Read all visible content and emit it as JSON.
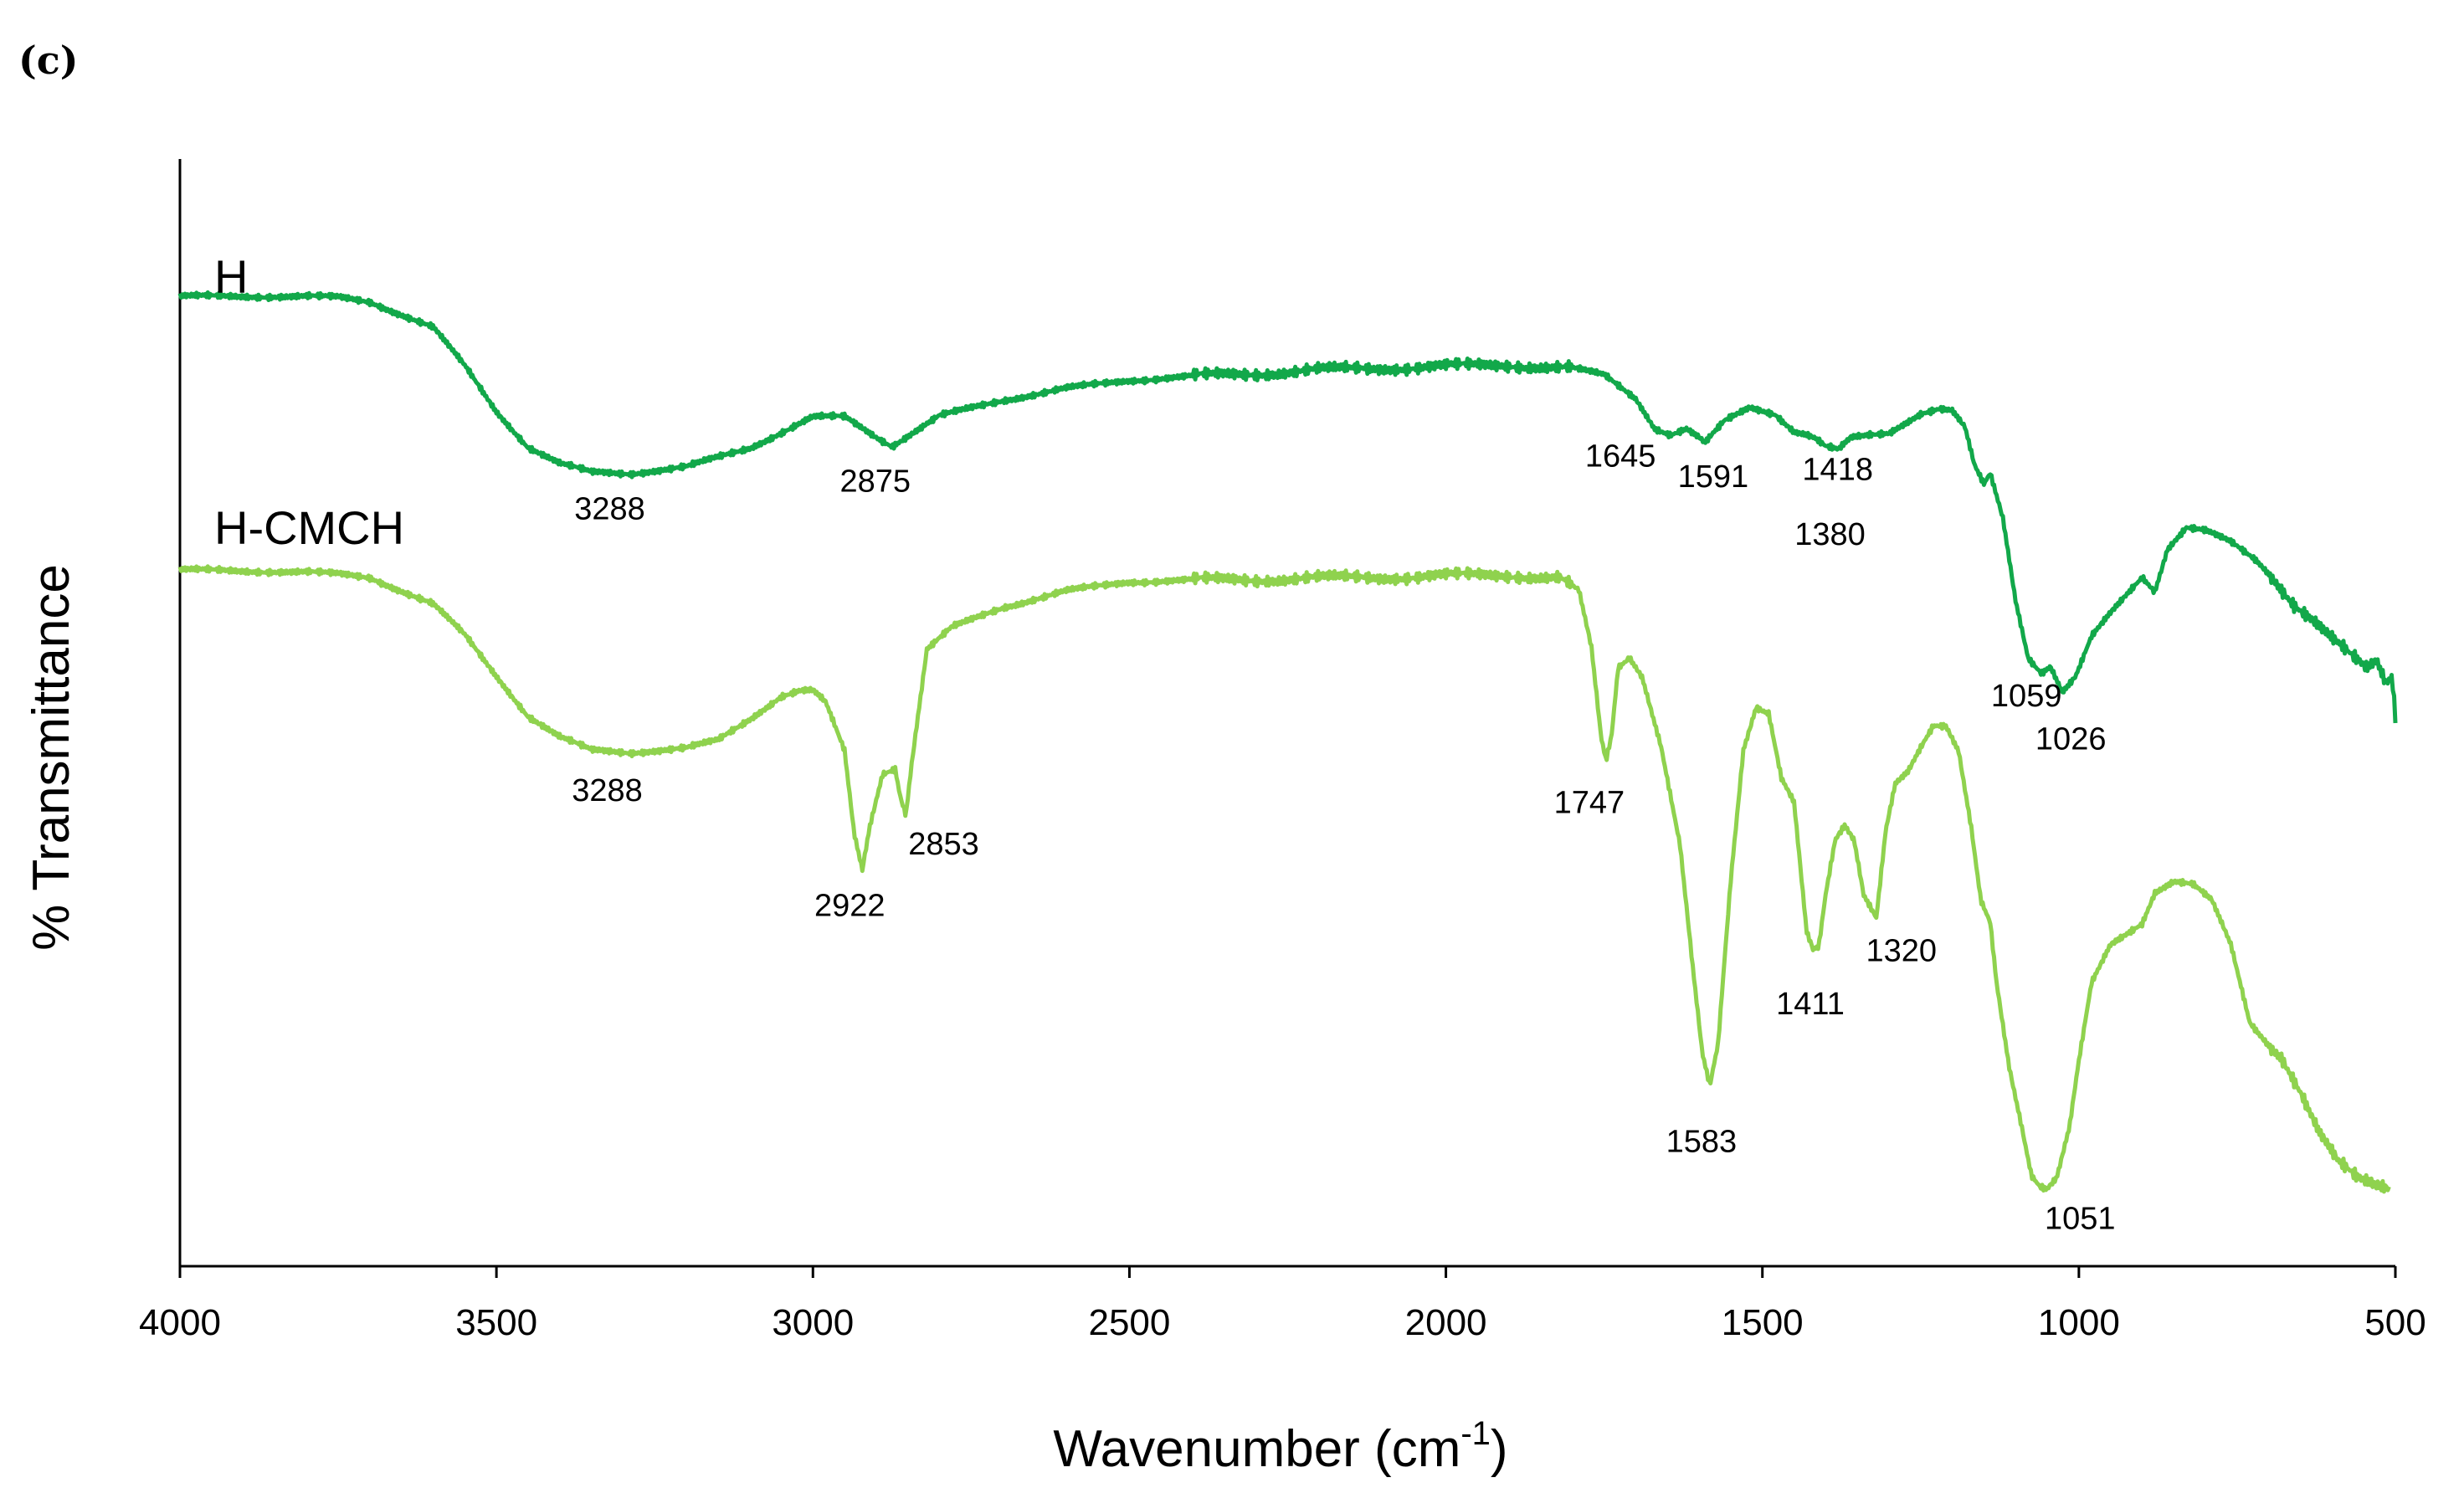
{
  "panel_label": "(c)",
  "colors": {
    "H": "#12a84a",
    "H-CMCH": "#8fd24e",
    "axis": "#000000"
  },
  "chart_data": {
    "type": "line",
    "title": "",
    "xlabel": "Wavenumber (cm",
    "xlabel_sup": "-1",
    "xlabel_close": ")",
    "ylabel": "% Transmittance",
    "xlim": [
      4000,
      500
    ],
    "x_reversed": true,
    "ylim": [
      0,
      1
    ],
    "y_ticks_shown": false,
    "grid": false,
    "legend": "inline labels beside curves",
    "x_ticks": [
      4000,
      3500,
      3000,
      2500,
      2000,
      1500,
      1000,
      500
    ],
    "x_tick_labels": [
      "4000",
      "3500",
      "3000",
      "2500",
      "2000",
      "1500",
      "1000",
      "500"
    ],
    "series": [
      {
        "name": "H",
        "points": [
          [
            4000,
            0.876
          ],
          [
            3800,
            0.876
          ],
          [
            3750,
            0.875
          ],
          [
            3700,
            0.871
          ],
          [
            3600,
            0.848
          ],
          [
            3550,
            0.813
          ],
          [
            3500,
            0.772
          ],
          [
            3450,
            0.74
          ],
          [
            3400,
            0.725
          ],
          [
            3350,
            0.717
          ],
          [
            3288,
            0.716
          ],
          [
            3200,
            0.722
          ],
          [
            3100,
            0.739
          ],
          [
            3000,
            0.767
          ],
          [
            2950,
            0.767
          ],
          [
            2900,
            0.749
          ],
          [
            2875,
            0.741
          ],
          [
            2850,
            0.75
          ],
          [
            2800,
            0.768
          ],
          [
            2700,
            0.782
          ],
          [
            2600,
            0.793
          ],
          [
            2500,
            0.8
          ],
          [
            2400,
            0.804
          ],
          [
            2300,
            0.806
          ],
          [
            2200,
            0.81
          ],
          [
            2100,
            0.811
          ],
          [
            2000,
            0.813
          ],
          [
            1900,
            0.814
          ],
          [
            1800,
            0.811
          ],
          [
            1750,
            0.805
          ],
          [
            1700,
            0.784
          ],
          [
            1670,
            0.757
          ],
          [
            1645,
            0.751
          ],
          [
            1620,
            0.756
          ],
          [
            1600,
            0.748
          ],
          [
            1591,
            0.743
          ],
          [
            1560,
            0.763
          ],
          [
            1520,
            0.776
          ],
          [
            1480,
            0.77
          ],
          [
            1450,
            0.754
          ],
          [
            1430,
            0.751
          ],
          [
            1418,
            0.748
          ],
          [
            1400,
            0.74
          ],
          [
            1380,
            0.737
          ],
          [
            1360,
            0.748
          ],
          [
            1330,
            0.751
          ],
          [
            1300,
            0.753
          ],
          [
            1280,
            0.76
          ],
          [
            1250,
            0.77
          ],
          [
            1220,
            0.774
          ],
          [
            1200,
            0.772
          ],
          [
            1180,
            0.757
          ],
          [
            1165,
            0.723
          ],
          [
            1150,
            0.706
          ],
          [
            1140,
            0.716
          ],
          [
            1120,
            0.676
          ],
          [
            1100,
            0.602
          ],
          [
            1080,
            0.55
          ],
          [
            1065,
            0.54
          ],
          [
            1059,
            0.536
          ],
          [
            1045,
            0.542
          ],
          [
            1026,
            0.518
          ],
          [
            1005,
            0.532
          ],
          [
            980,
            0.568
          ],
          [
            950,
            0.59
          ],
          [
            920,
            0.61
          ],
          [
            900,
            0.623
          ],
          [
            880,
            0.61
          ],
          [
            860,
            0.648
          ],
          [
            830,
            0.667
          ],
          [
            800,
            0.664
          ],
          [
            760,
            0.654
          ],
          [
            720,
            0.638
          ],
          [
            690,
            0.62
          ],
          [
            660,
            0.598
          ],
          [
            630,
            0.583
          ],
          [
            600,
            0.566
          ],
          [
            570,
            0.551
          ],
          [
            545,
            0.54
          ],
          [
            530,
            0.548
          ],
          [
            515,
            0.528
          ],
          [
            505,
            0.534
          ],
          [
            500,
            0.497
          ]
        ],
        "peaks": [
          {
            "x": 3288,
            "label": "3288"
          },
          {
            "x": 2875,
            "label": "2875"
          },
          {
            "x": 1645,
            "label": "1645"
          },
          {
            "x": 1591,
            "label": "1591"
          },
          {
            "x": 1418,
            "label": "1418"
          },
          {
            "x": 1380,
            "label": "1380"
          },
          {
            "x": 1059,
            "label": "1059"
          },
          {
            "x": 1026,
            "label": "1026"
          }
        ]
      },
      {
        "name": "H-CMCH",
        "points": [
          [
            4000,
            0.629
          ],
          [
            3800,
            0.627
          ],
          [
            3750,
            0.625
          ],
          [
            3700,
            0.622
          ],
          [
            3600,
            0.598
          ],
          [
            3550,
            0.57
          ],
          [
            3500,
            0.533
          ],
          [
            3450,
            0.497
          ],
          [
            3400,
            0.478
          ],
          [
            3350,
            0.466
          ],
          [
            3288,
            0.464
          ],
          [
            3200,
            0.468
          ],
          [
            3150,
            0.475
          ],
          [
            3100,
            0.494
          ],
          [
            3050,
            0.515
          ],
          [
            3020,
            0.52
          ],
          [
            3000,
            0.52
          ],
          [
            2980,
            0.509
          ],
          [
            2950,
            0.465
          ],
          [
            2935,
            0.391
          ],
          [
            2922,
            0.358
          ],
          [
            2910,
            0.398
          ],
          [
            2890,
            0.445
          ],
          [
            2870,
            0.45
          ],
          [
            2862,
            0.425
          ],
          [
            2853,
            0.408
          ],
          [
            2845,
            0.45
          ],
          [
            2820,
            0.557
          ],
          [
            2780,
            0.577
          ],
          [
            2700,
            0.595
          ],
          [
            2600,
            0.61
          ],
          [
            2500,
            0.618
          ],
          [
            2400,
            0.62
          ],
          [
            2300,
            0.62
          ],
          [
            2200,
            0.622
          ],
          [
            2100,
            0.622
          ],
          [
            2000,
            0.624
          ],
          [
            1900,
            0.624
          ],
          [
            1820,
            0.622
          ],
          [
            1790,
            0.61
          ],
          [
            1770,
            0.558
          ],
          [
            1755,
            0.478
          ],
          [
            1747,
            0.456
          ],
          [
            1738,
            0.48
          ],
          [
            1728,
            0.54
          ],
          [
            1710,
            0.55
          ],
          [
            1690,
            0.533
          ],
          [
            1660,
            0.47
          ],
          [
            1630,
            0.38
          ],
          [
            1610,
            0.27
          ],
          [
            1595,
            0.192
          ],
          [
            1583,
            0.162
          ],
          [
            1570,
            0.2
          ],
          [
            1550,
            0.348
          ],
          [
            1530,
            0.466
          ],
          [
            1510,
            0.505
          ],
          [
            1490,
            0.5
          ],
          [
            1470,
            0.442
          ],
          [
            1450,
            0.42
          ],
          [
            1430,
            0.302
          ],
          [
            1420,
            0.286
          ],
          [
            1411,
            0.288
          ],
          [
            1400,
            0.335
          ],
          [
            1385,
            0.384
          ],
          [
            1370,
            0.397
          ],
          [
            1355,
            0.384
          ],
          [
            1340,
            0.335
          ],
          [
            1320,
            0.315
          ],
          [
            1305,
            0.395
          ],
          [
            1290,
            0.437
          ],
          [
            1270,
            0.448
          ],
          [
            1250,
            0.469
          ],
          [
            1230,
            0.488
          ],
          [
            1210,
            0.487
          ],
          [
            1190,
            0.464
          ],
          [
            1170,
            0.395
          ],
          [
            1155,
            0.33
          ],
          [
            1140,
            0.31
          ],
          [
            1130,
            0.256
          ],
          [
            1110,
            0.18
          ],
          [
            1090,
            0.126
          ],
          [
            1075,
            0.083
          ],
          [
            1062,
            0.073
          ],
          [
            1051,
            0.07
          ],
          [
            1035,
            0.08
          ],
          [
            1015,
            0.125
          ],
          [
            1000,
            0.185
          ],
          [
            980,
            0.255
          ],
          [
            950,
            0.29
          ],
          [
            925,
            0.3
          ],
          [
            900,
            0.31
          ],
          [
            880,
            0.338
          ],
          [
            850,
            0.348
          ],
          [
            820,
            0.345
          ],
          [
            790,
            0.33
          ],
          [
            760,
            0.29
          ],
          [
            730,
            0.22
          ],
          [
            700,
            0.2
          ],
          [
            680,
            0.19
          ],
          [
            650,
            0.158
          ],
          [
            620,
            0.12
          ],
          [
            590,
            0.093
          ],
          [
            560,
            0.079
          ],
          [
            530,
            0.074
          ],
          [
            510,
            0.072
          ]
        ],
        "peaks": [
          {
            "x": 3288,
            "label": "3288"
          },
          {
            "x": 2922,
            "label": "2922"
          },
          {
            "x": 2853,
            "label": "2853"
          },
          {
            "x": 1747,
            "label": "1747"
          },
          {
            "x": 1583,
            "label": "1583"
          },
          {
            "x": 1411,
            "label": "1411"
          },
          {
            "x": 1320,
            "label": "1320"
          },
          {
            "x": 1051,
            "label": "1051"
          }
        ]
      }
    ]
  }
}
